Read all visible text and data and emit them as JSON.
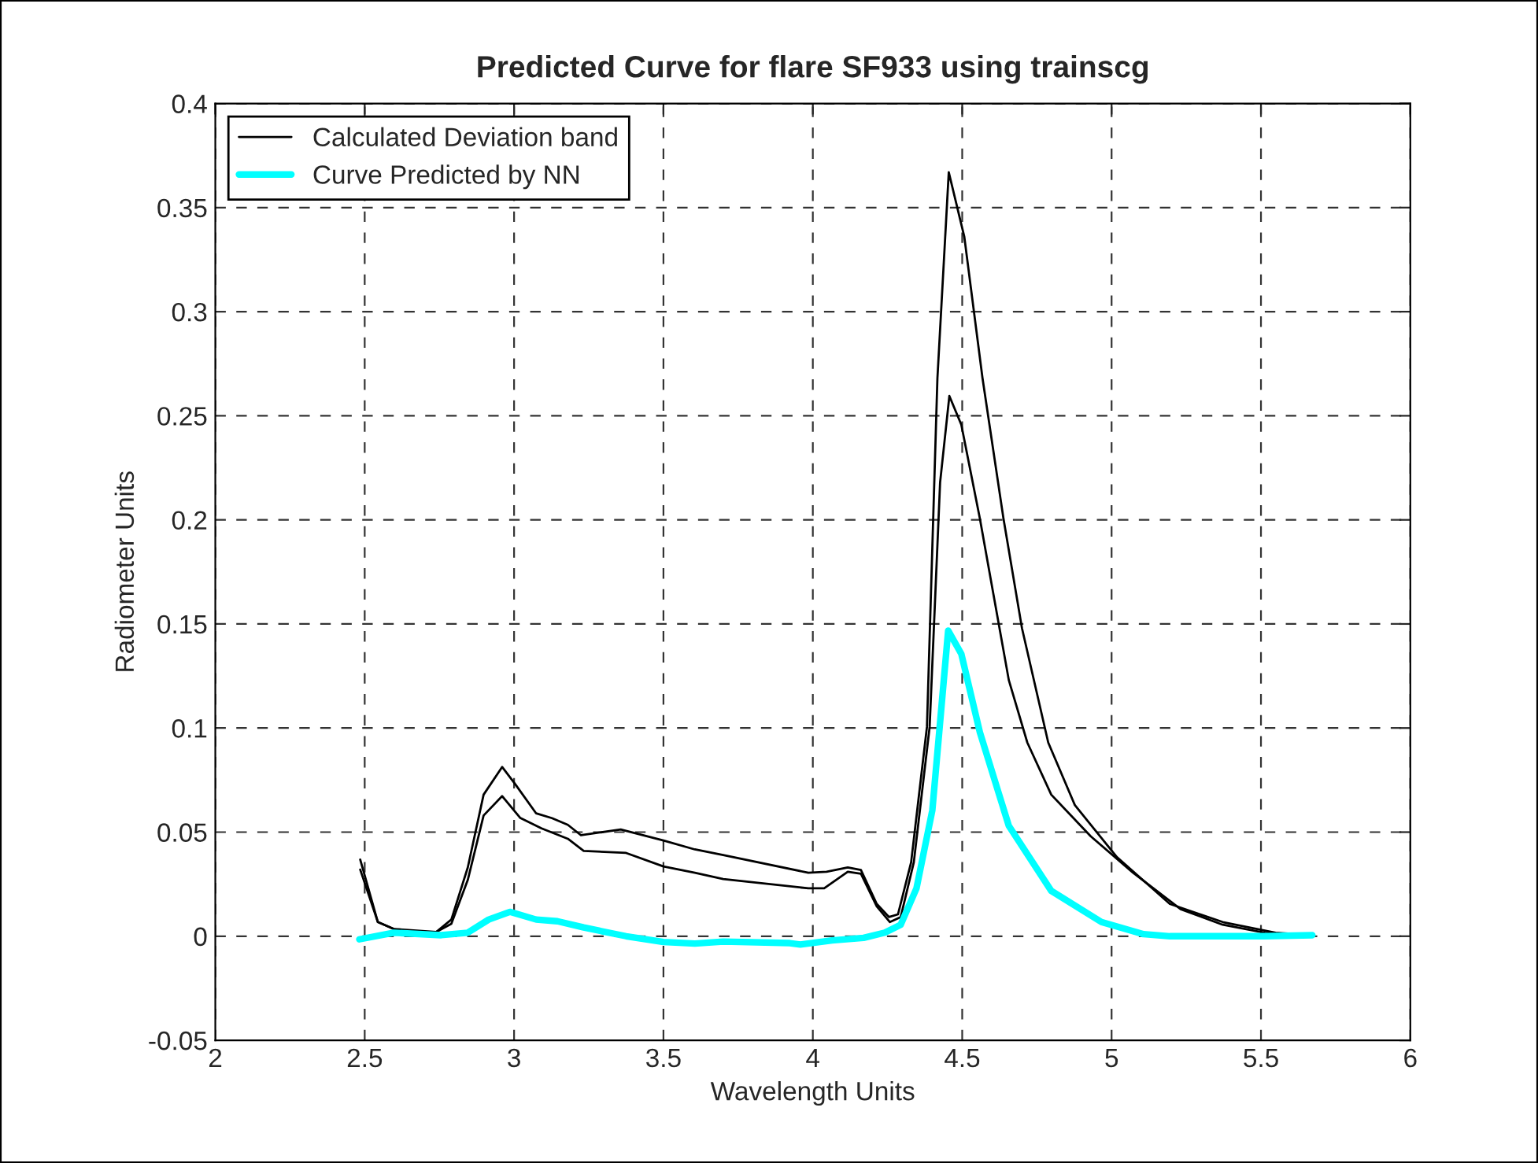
{
  "chart_data": {
    "type": "line",
    "title": "Predicted Curve for flare SF933 using trainscg",
    "xlabel": "Wavelength Units",
    "ylabel": "Radiometer Units",
    "xlim": [
      2,
      6
    ],
    "ylim": [
      -0.05,
      0.4
    ],
    "xticks": [
      2,
      2.5,
      3,
      3.5,
      4,
      4.5,
      5,
      5.5,
      6
    ],
    "yticks": [
      -0.05,
      0,
      0.05,
      0.1,
      0.15,
      0.2,
      0.25,
      0.3,
      0.35,
      0.4
    ],
    "grid": true,
    "legend": "top left",
    "line_style": "solid",
    "marker": "none",
    "series": [
      {
        "name": "Calculated Deviation band",
        "color": "#000000",
        "x": [
          2.485,
          2.544,
          2.597,
          2.667,
          2.739,
          2.79,
          2.845,
          2.898,
          2.96,
          3.021,
          3.092,
          3.18,
          3.233,
          3.375,
          3.5,
          3.605,
          3.7,
          3.985,
          4.038,
          4.117,
          4.161,
          4.214,
          4.258,
          4.294,
          4.338,
          4.391,
          4.426,
          4.457,
          4.497,
          4.559,
          4.656,
          4.718,
          4.798,
          4.93,
          5.072,
          5.231,
          5.372,
          5.513,
          5.672
        ],
        "values": [
          0.032,
          0.0068,
          0.0035,
          0.0015,
          0.002,
          0.006,
          0.027,
          0.058,
          0.0673,
          0.0568,
          0.0518,
          0.0468,
          0.041,
          0.04,
          0.0335,
          0.0305,
          0.0275,
          0.023,
          0.023,
          0.031,
          0.03,
          0.0143,
          0.0068,
          0.0092,
          0.0355,
          0.1006,
          0.218,
          0.2595,
          0.2457,
          0.2007,
          0.123,
          0.093,
          0.068,
          0.048,
          0.0305,
          0.013,
          0.0055,
          0.0017,
          0.0005
        ]
      },
      {
        "color": "#000000",
        "x": [
          2.485,
          2.544,
          2.597,
          2.739,
          2.79,
          2.845,
          2.898,
          2.96,
          3.004,
          3.074,
          3.127,
          3.18,
          3.224,
          3.357,
          3.5,
          3.605,
          3.7,
          3.985,
          4.046,
          4.117,
          4.161,
          4.214,
          4.255,
          4.285,
          4.329,
          4.382,
          4.417,
          4.455,
          4.507,
          4.568,
          4.638,
          4.7,
          4.788,
          4.877,
          5.018,
          5.195,
          5.372,
          5.549,
          5.672
        ],
        "values": [
          0.0368,
          0.0068,
          0.0035,
          0.002,
          0.008,
          0.033,
          0.068,
          0.0813,
          0.073,
          0.059,
          0.0567,
          0.0535,
          0.0485,
          0.0513,
          0.046,
          0.0417,
          0.039,
          0.0305,
          0.031,
          0.033,
          0.0318,
          0.0155,
          0.0092,
          0.0105,
          0.0355,
          0.1006,
          0.268,
          0.367,
          0.336,
          0.268,
          0.2007,
          0.148,
          0.093,
          0.063,
          0.038,
          0.0155,
          0.0068,
          0.0017,
          0.0005
        ]
      },
      {
        "name": "Curve Predicted by NN",
        "color": "#00ffff",
        "x": [
          2.482,
          2.597,
          2.756,
          2.845,
          2.915,
          2.986,
          3.074,
          3.145,
          3.233,
          3.375,
          3.5,
          3.605,
          3.7,
          3.923,
          3.958,
          4.064,
          4.17,
          4.241,
          4.294,
          4.347,
          4.4,
          4.453,
          4.497,
          4.559,
          4.656,
          4.798,
          4.966,
          5.107,
          5.195,
          5.513,
          5.672
        ],
        "values": [
          -0.0015,
          0.0017,
          0.0005,
          0.0017,
          0.008,
          0.0117,
          0.008,
          0.0072,
          0.0042,
          0,
          -0.0028,
          -0.0035,
          -0.0026,
          -0.0033,
          -0.004,
          -0.002,
          -0.0008,
          0.0017,
          0.0055,
          0.023,
          0.0605,
          0.1468,
          0.1356,
          0.098,
          0.053,
          0.0218,
          0.0068,
          0.001,
          0,
          0,
          0.0005
        ]
      }
    ]
  }
}
